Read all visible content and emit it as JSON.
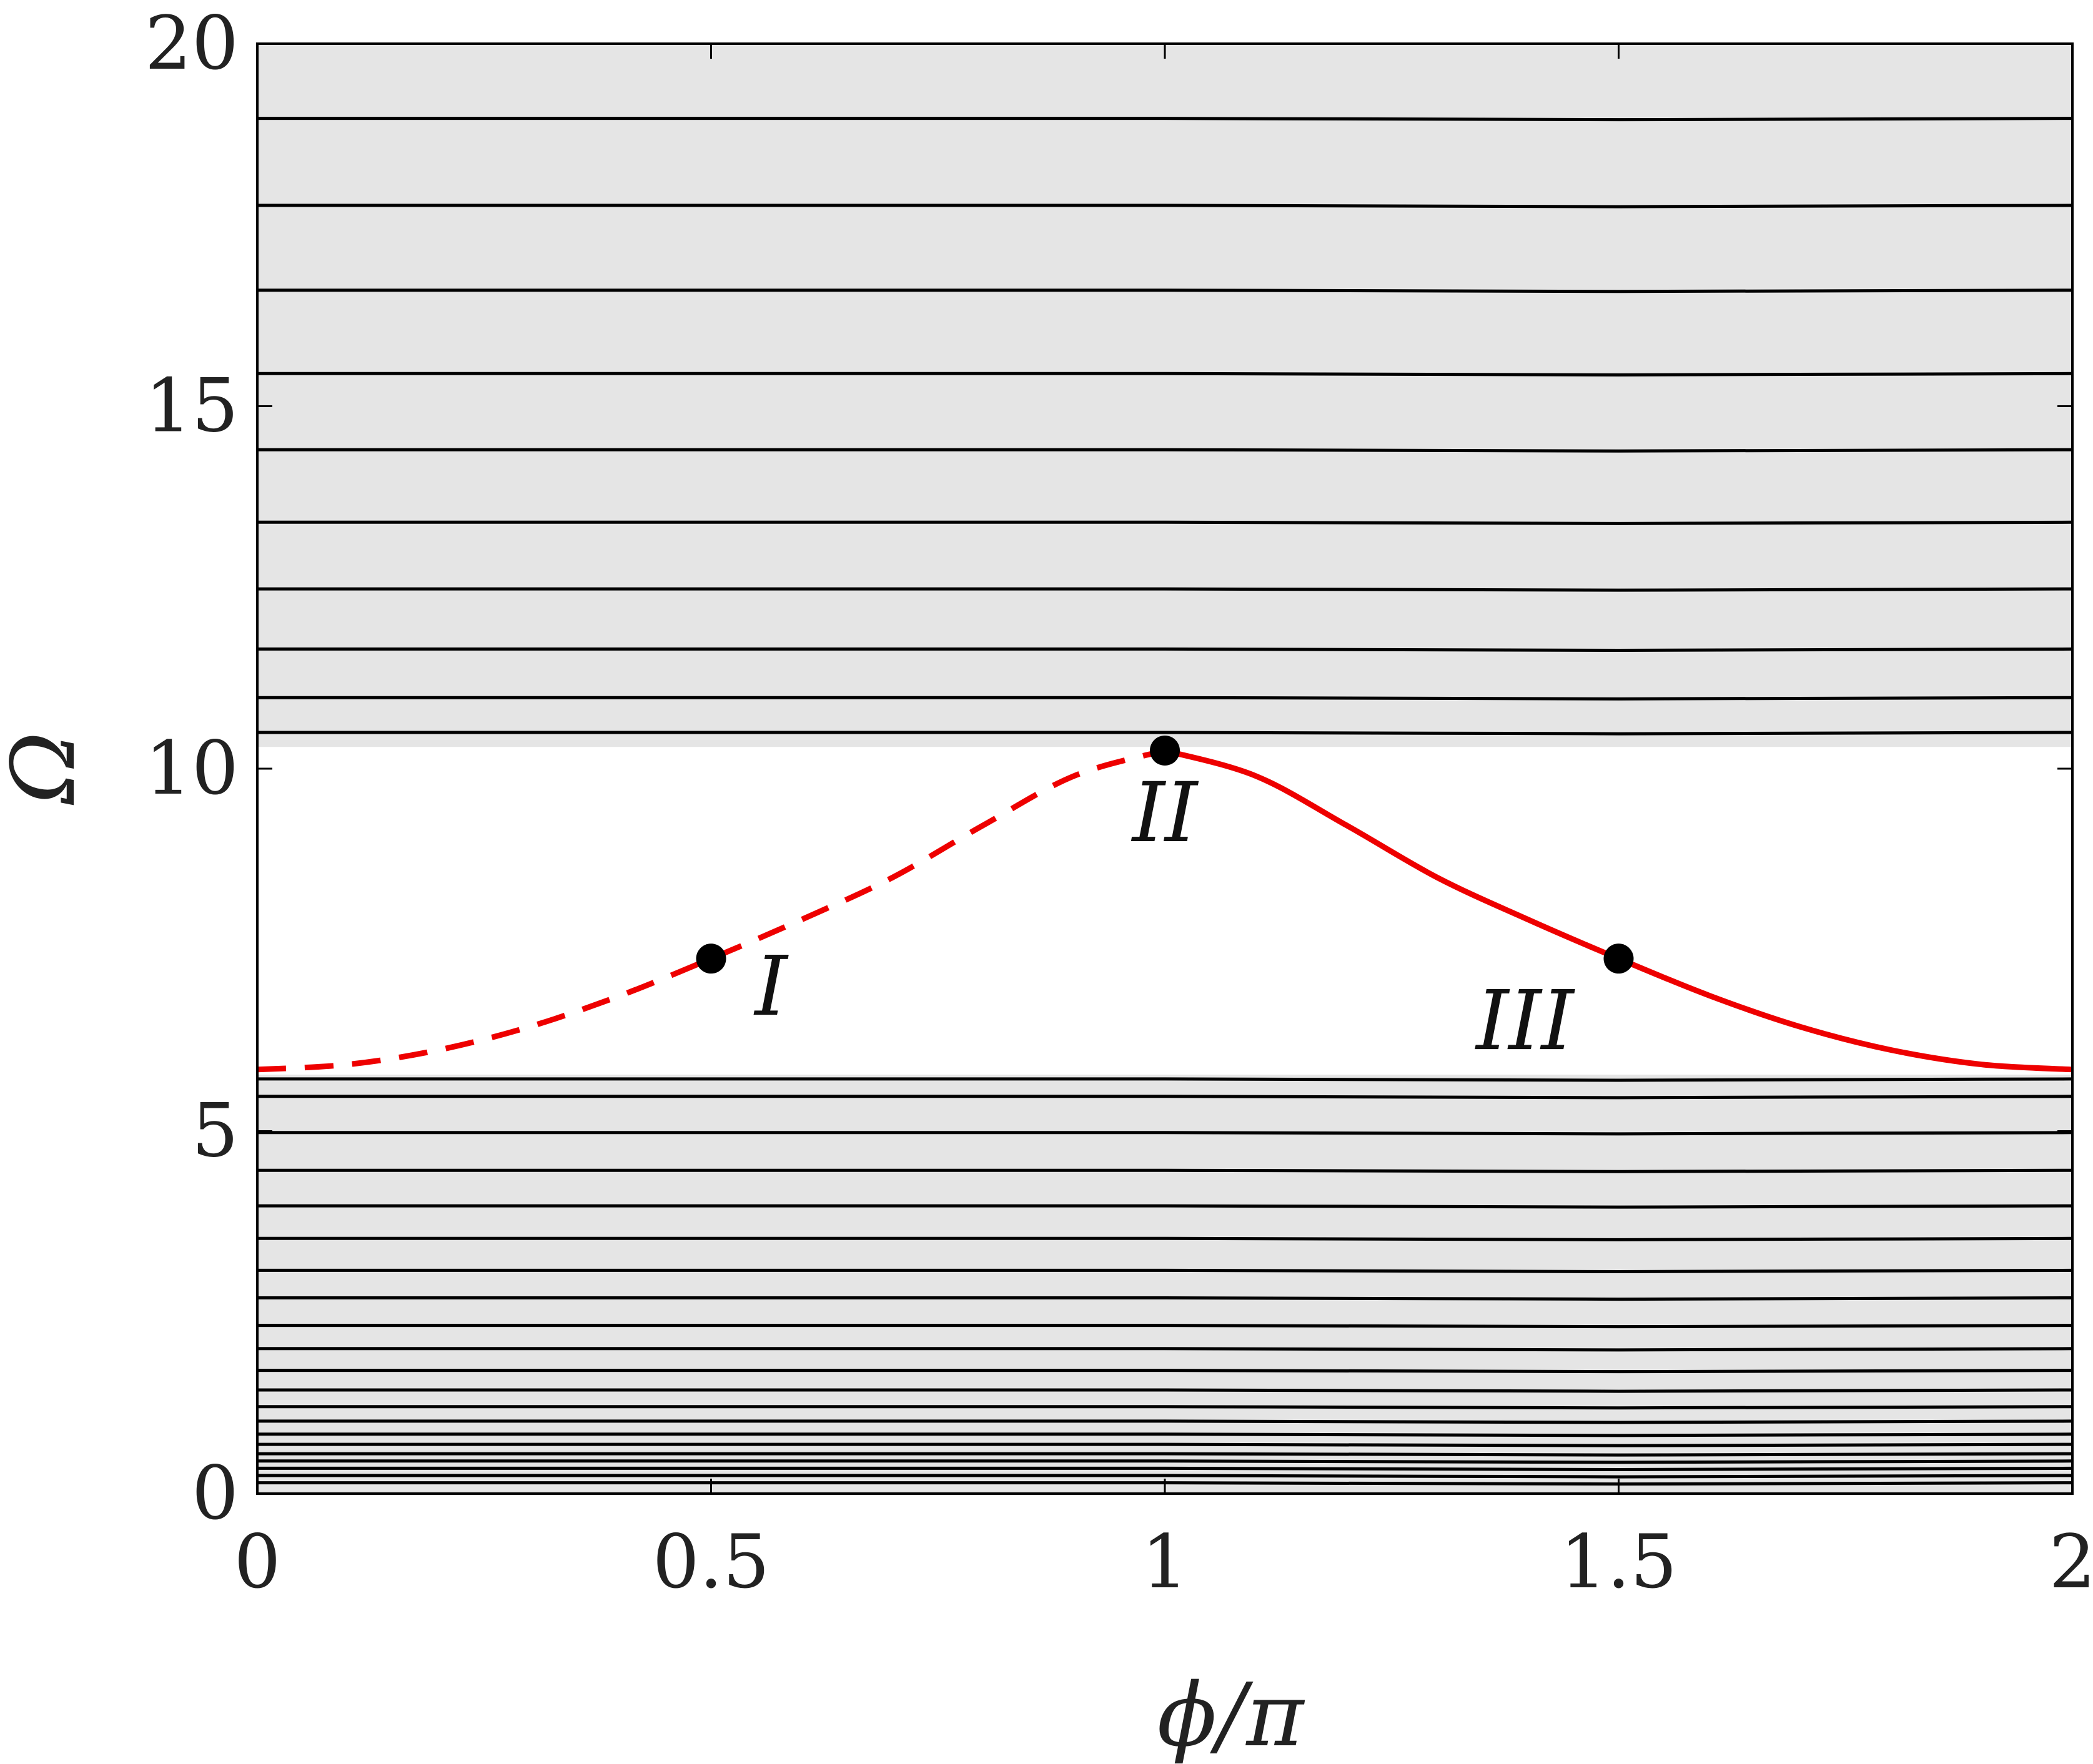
{
  "chart_data": {
    "type": "line",
    "title": "",
    "xlabel": "ϕ/π",
    "ylabel": "Ω",
    "xlim": [
      0,
      2
    ],
    "ylim": [
      0,
      20
    ],
    "xticks": [
      0,
      0.5,
      1,
      1.5,
      2
    ],
    "xtick_labels": [
      "0",
      "0.5",
      "1",
      "1.5",
      "2"
    ],
    "yticks": [
      0,
      5,
      10,
      15,
      20
    ],
    "ytick_labels": [
      "0",
      "5",
      "10",
      "15",
      "20"
    ],
    "grid": false,
    "colors": {
      "band_fill": "#e5e5e5",
      "band_lines": "#000000",
      "mode_curve": "#ee0000",
      "points": "#000000"
    },
    "bands": [
      {
        "name": "",
        "ymin": 0,
        "ymax": 5.78
      },
      {
        "name": "",
        "ymin": 10.3,
        "ymax": 20
      }
    ],
    "band_lines": [
      0.15,
      0.25,
      0.35,
      0.45,
      0.55,
      0.68,
      0.82,
      1.0,
      1.2,
      1.43,
      1.7,
      2.0,
      2.32,
      2.7,
      3.08,
      3.52,
      3.97,
      4.46,
      4.98,
      5.48,
      5.72,
      10.5,
      10.98,
      11.65,
      12.48,
      13.4,
      14.4,
      15.45,
      16.6,
      17.77,
      18.97
    ],
    "series": [
      {
        "name": "",
        "style": "dashed",
        "x": [
          0,
          0.1,
          0.2,
          0.3,
          0.4,
          0.5,
          0.6,
          0.7,
          0.8,
          0.9,
          1.0
        ],
        "y": [
          5.85,
          5.92,
          6.12,
          6.44,
          6.87,
          7.38,
          7.92,
          8.5,
          9.22,
          9.9,
          10.25
        ]
      },
      {
        "name": "",
        "style": "solid",
        "x": [
          1.0,
          1.1,
          1.2,
          1.3,
          1.4,
          1.5,
          1.6,
          1.7,
          1.8,
          1.9,
          2.0
        ],
        "y": [
          10.25,
          9.9,
          9.22,
          8.5,
          7.92,
          7.38,
          6.87,
          6.44,
          6.12,
          5.92,
          5.85
        ]
      }
    ],
    "points": [
      {
        "label": "I",
        "x": 0.5,
        "y": 7.38
      },
      {
        "label": "II",
        "x": 1.0,
        "y": 10.25
      },
      {
        "label": "III",
        "x": 1.5,
        "y": 7.38
      }
    ]
  }
}
